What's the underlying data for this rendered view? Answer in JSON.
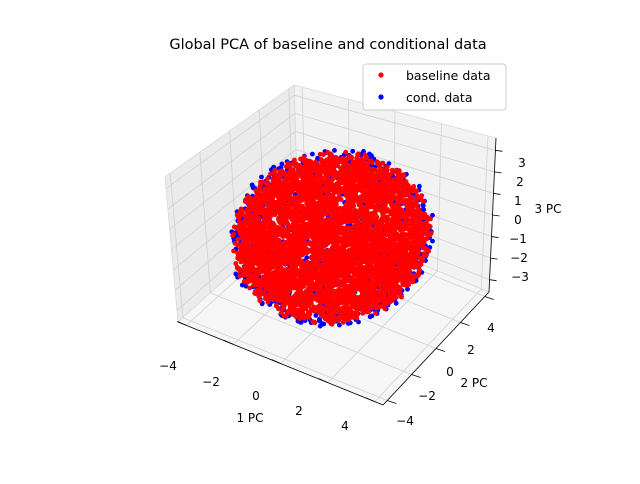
{
  "chart_data": {
    "type": "scatter",
    "projection": "3d",
    "title": "Global PCA of baseline and conditional data",
    "xlabel": "1 PC",
    "ylabel": "2 PC",
    "zlabel": "3 PC",
    "x_ticks": [
      "−4",
      "−2",
      "0",
      "2",
      "4"
    ],
    "y_ticks": [
      "−4",
      "−2",
      "0",
      "2",
      "4"
    ],
    "z_ticks": [
      "−3",
      "−2",
      "−1",
      "0",
      "1",
      "2",
      "3"
    ],
    "xlim": [
      -4,
      4
    ],
    "ylim": [
      -4,
      4
    ],
    "zlim": [
      -3,
      3
    ],
    "grid": true,
    "legend_position": "top-right",
    "series": [
      {
        "name": "cond. data",
        "color": "#0000ff",
        "shape": "roughly spherical cloud",
        "radius": 3.3
      },
      {
        "name": "baseline data",
        "color": "#ff0000",
        "shape": "roughly spherical cloud",
        "radius": 3.1
      }
    ],
    "legend": [
      {
        "name": "baseline data",
        "color": "#ff0000"
      },
      {
        "name": "cond. data",
        "color": "#0000ff"
      }
    ]
  }
}
